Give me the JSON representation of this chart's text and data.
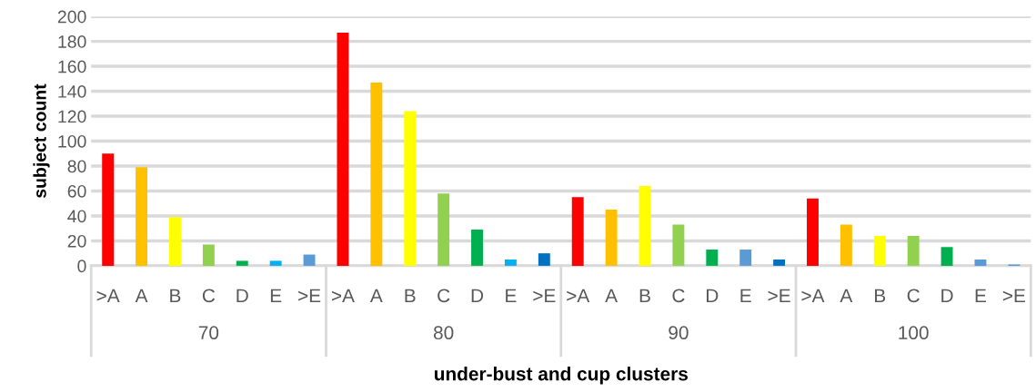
{
  "chart_data": {
    "type": "bar",
    "xlabel": "under-bust and cup clusters",
    "ylabel": "subject count",
    "categories": [
      ">A",
      "A",
      "B",
      "C",
      "D",
      "E",
      ">E",
      ">A",
      "A",
      "B",
      "C",
      "D",
      "E",
      ">E",
      ">A",
      "A",
      "B",
      "C",
      "D",
      "E",
      ">E",
      ">A",
      "A",
      "B",
      "C",
      "D",
      "E",
      ">E"
    ],
    "values": [
      90,
      79,
      39,
      17,
      4,
      4,
      9,
      187,
      147,
      124,
      58,
      29,
      5,
      10,
      55,
      45,
      64,
      33,
      13,
      13,
      5,
      54,
      33,
      24,
      24,
      15,
      5,
      1
    ],
    "colors": [
      "#ff0000",
      "#ffc000",
      "#ffff00",
      "#92d050",
      "#00b050",
      "#00b0f0",
      "#5b9bd5",
      "#ff0000",
      "#ffc000",
      "#ffff00",
      "#92d050",
      "#00b050",
      "#00b0f0",
      "#0070c0",
      "#ff0000",
      "#ffc000",
      "#ffff00",
      "#92d050",
      "#00b050",
      "#5b9bd5",
      "#0070c0",
      "#ff0000",
      "#ffc000",
      "#ffff00",
      "#92d050",
      "#00b050",
      "#5b9bd5",
      "#5b9bd5"
    ],
    "annotations": [
      "70",
      "80",
      "90",
      "100"
    ],
    "ylim": [
      0,
      200
    ],
    "yticks": [
      0,
      20,
      40,
      60,
      80,
      100,
      120,
      140,
      160,
      180,
      200
    ],
    "grid": "y",
    "legend": false
  }
}
